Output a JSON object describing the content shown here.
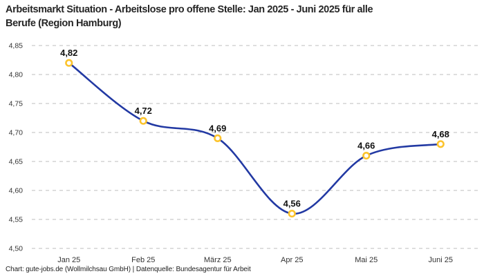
{
  "title": "Arbeitsmarkt Situation - Arbeitslose pro offene Stelle: Jan 2025 - Juni 2025 für alle Berufe (Region Hamburg)",
  "title_lines": {
    "line1": "Arbeitsmarkt Situation - Arbeitslose pro offene Stelle: Jan 2025 - Juni 2025 für alle",
    "line2": "Berufe (Region Hamburg)"
  },
  "footer": "Chart: gute-jobs.de (Wollmilchsau GmbH) | Datenquelle: Bundesagentur für Arbeit",
  "chart_data": {
    "type": "line",
    "title": "Arbeitsmarkt Situation - Arbeitslose pro offene Stelle: Jan 2025 - Juni 2025 für alle Berufe (Region Hamburg)",
    "categories": [
      "Jan 25",
      "Feb 25",
      "März 25",
      "Apr 25",
      "Mai 25",
      "Juni 25"
    ],
    "values": [
      4.82,
      4.72,
      4.69,
      4.56,
      4.66,
      4.68
    ],
    "point_labels": [
      "4,82",
      "4,72",
      "4,69",
      "4,56",
      "4,66",
      "4,68"
    ],
    "xlabel": "",
    "ylabel": "",
    "ylim": [
      4.5,
      4.85
    ],
    "yticks": [
      4.5,
      4.55,
      4.6,
      4.65,
      4.7,
      4.75,
      4.8,
      4.85
    ],
    "ytick_labels": [
      "4,50",
      "4,55",
      "4,60",
      "4,65",
      "4,70",
      "4,75",
      "4,80",
      "4,85"
    ],
    "grid": "horizontal-dashed",
    "legend": "none",
    "curve": "smooth-spline",
    "marker": "open-circle"
  },
  "colors": {
    "line": "#2239a3",
    "marker_ring": "#fcc32c",
    "marker_fill": "#ffffff",
    "grid": "#c9c9c9",
    "tick_text": "#333333",
    "point_label_text": "#111111",
    "title_text": "#262626",
    "footer_text": "#222222"
  }
}
